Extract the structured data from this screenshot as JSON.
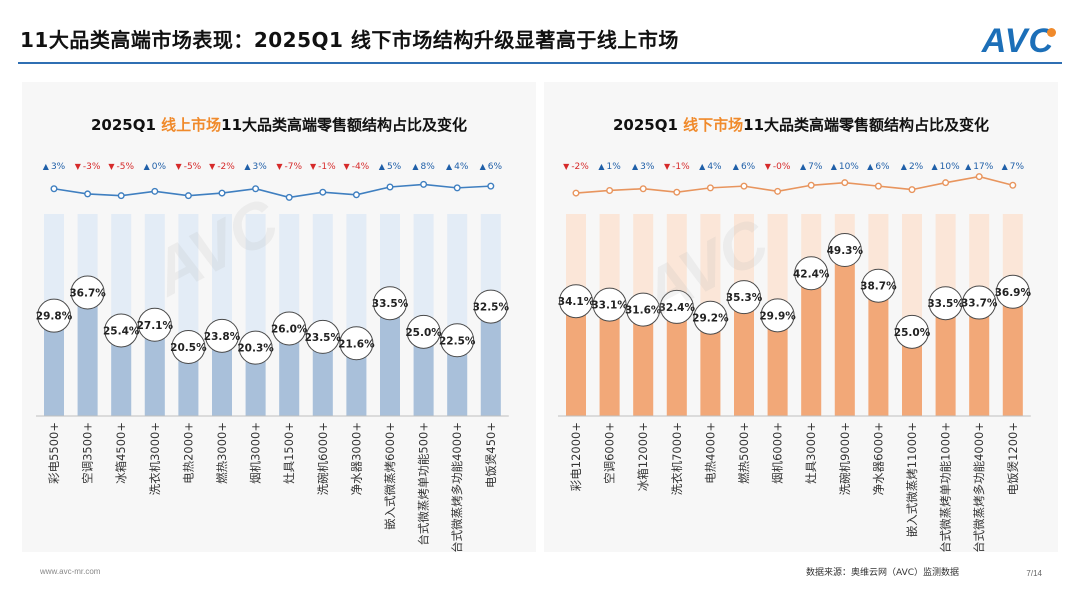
{
  "header": {
    "title": "11大品类高端市场表现：2025Q1 线下市场结构升级显著高于线上市场",
    "logo": "AVC"
  },
  "footer": {
    "website": "www.avc-mr.com",
    "source": "数据来源：奥维云网（AVC）监测数据",
    "page": "7/14"
  },
  "colors": {
    "online_bar": "#a9c0da",
    "online_bg": "#e3ecf6",
    "online_line": "#3f7fc0",
    "offline_bar": "#f2a878",
    "offline_bg": "#fbe6d8",
    "offline_line": "#e8955e",
    "up": "#1f5fa8",
    "down": "#d62a2a"
  },
  "chart_data": [
    {
      "type": "bar",
      "title_prefix": "2025Q1 ",
      "title_highlight": "线上市场",
      "title_suffix": "11大品类高端零售额结构占比及变化",
      "categories": [
        "彩电5500+",
        "空调3500+",
        "冰箱4500+",
        "洗衣机3000+",
        "电热2000+",
        "燃热3000+",
        "烟机3000+",
        "灶具1500+",
        "洗碗机6000+",
        "净水器3000+",
        "嵌入式微蒸烤6000+",
        "台式微蒸烤单功能500+",
        "台式微蒸烤多功能4000+",
        "电饭煲450+"
      ],
      "values": [
        29.8,
        36.7,
        25.4,
        27.1,
        20.5,
        23.8,
        20.3,
        26.0,
        23.5,
        21.6,
        33.5,
        25.0,
        22.5,
        32.5
      ],
      "value_labels": [
        "29.8%",
        "36.7%",
        "25.4%",
        "27.1%",
        "20.5%",
        "23.8%",
        "20.3%",
        "26.0%",
        "23.5%",
        "21.6%",
        "33.5%",
        "25.0%",
        "22.5%",
        "32.5%"
      ],
      "changes": [
        3,
        -3,
        -5,
        0,
        -5,
        -2,
        3,
        -7,
        -1,
        -4,
        5,
        8,
        4,
        6
      ],
      "change_labels": [
        "3%",
        "-3%",
        "-5%",
        "0%",
        "-5%",
        "-2%",
        "3%",
        "-7%",
        "-1%",
        "-4%",
        "5%",
        "8%",
        "4%",
        "6%"
      ],
      "ylim": [
        0,
        60
      ]
    },
    {
      "type": "bar",
      "title_prefix": "2025Q1 ",
      "title_highlight": "线下市场",
      "title_suffix": "11大品类高端零售额结构占比及变化",
      "categories": [
        "彩电12000+",
        "空调6000+",
        "冰箱12000+",
        "洗衣机7000+",
        "电热4000+",
        "燃热5000+",
        "烟机6000+",
        "灶具3000+",
        "洗碗机9000+",
        "净水器6000+",
        "嵌入式微蒸烤11000+",
        "台式微蒸烤单功能1000+",
        "台式微蒸烤多功能4000+",
        "电饭煲1200+"
      ],
      "values": [
        34.1,
        33.1,
        31.6,
        32.4,
        29.2,
        35.3,
        29.9,
        42.4,
        49.3,
        38.7,
        25.0,
        33.5,
        33.7,
        36.9
      ],
      "value_labels": [
        "34.1%",
        "33.1%",
        "31.6%",
        "32.4%",
        "29.2%",
        "35.3%",
        "29.9%",
        "42.4%",
        "49.3%",
        "38.7%",
        "25.0%",
        "33.5%",
        "33.7%",
        "36.9%"
      ],
      "changes": [
        -2,
        1,
        3,
        -1,
        4,
        6,
        0,
        7,
        10,
        6,
        2,
        10,
        17,
        7
      ],
      "change_labels": [
        "-2%",
        "1%",
        "3%",
        "-1%",
        "4%",
        "6%",
        "-0%",
        "7%",
        "10%",
        "6%",
        "2%",
        "10%",
        "17%",
        "7%"
      ],
      "ylim": [
        0,
        60
      ]
    }
  ]
}
